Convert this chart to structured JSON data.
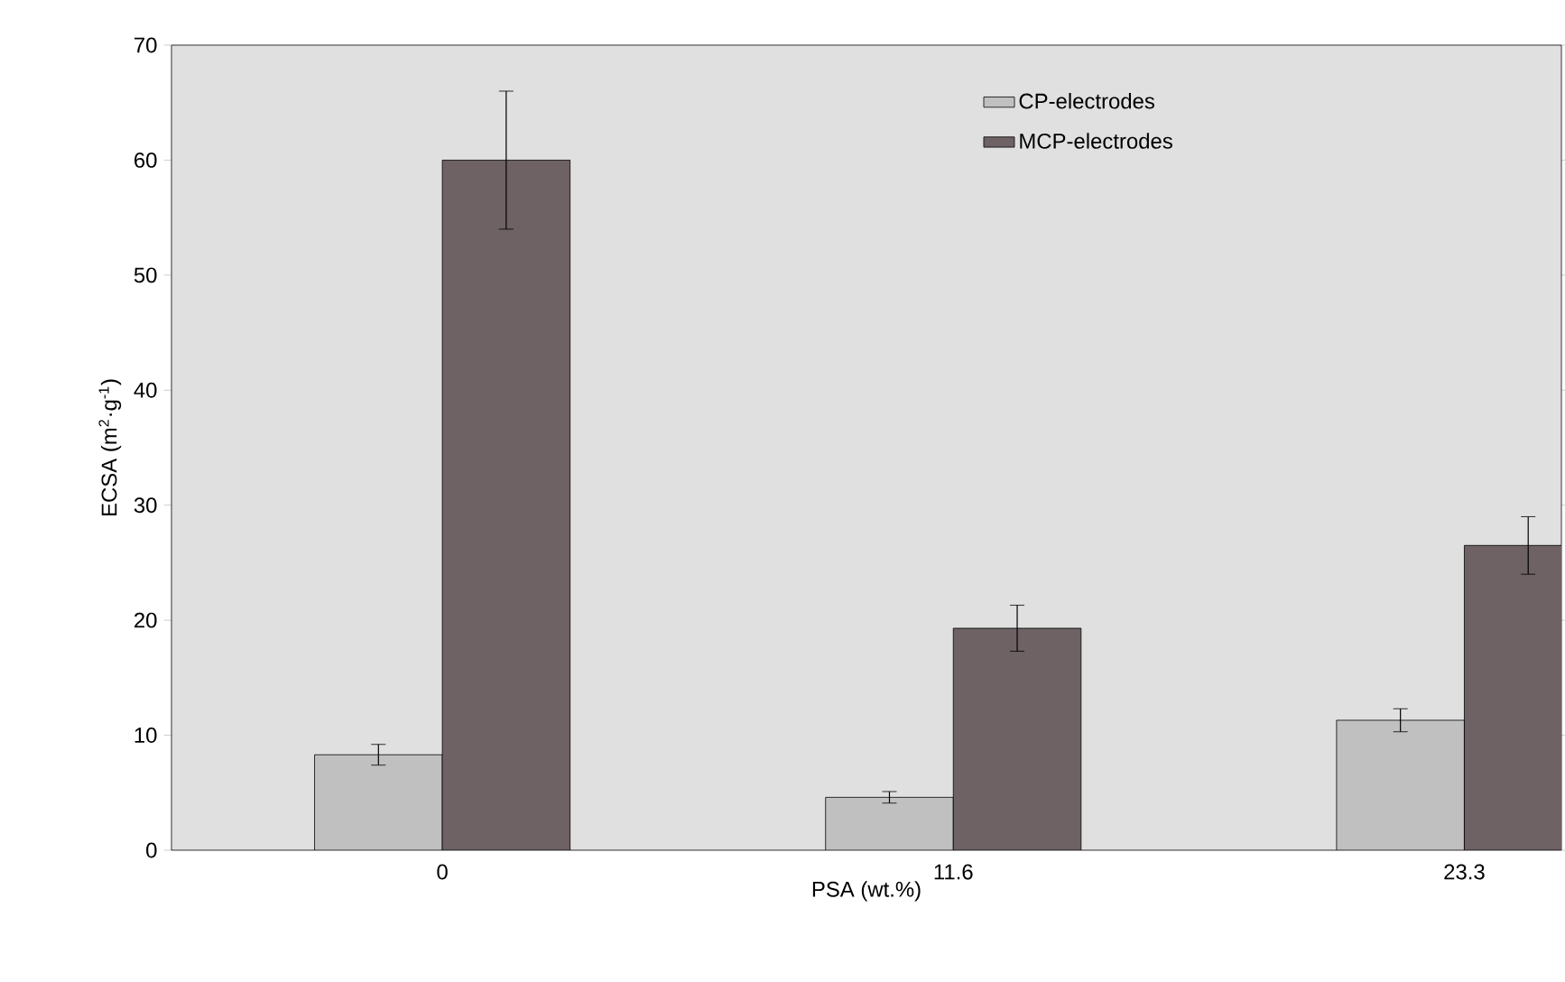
{
  "chart_data": {
    "type": "bar",
    "xlabel": "PSA (wt.%)",
    "ylabel": "ECSA (m$^{2}$·g$^{-1}$)",
    "categories": [
      "0",
      "11.6",
      "23.3"
    ],
    "series": [
      {
        "name": "CP-electrodes",
        "color": "#c0c0c0",
        "values": [
          8.3,
          4.6,
          11.3
        ],
        "errors": [
          0.9,
          0.5,
          1.0
        ]
      },
      {
        "name": "MCP-electrodes",
        "color": "#6e6264",
        "values": [
          60,
          19.3,
          26.5
        ],
        "errors": [
          6,
          2,
          2.5
        ]
      }
    ],
    "ylim": [
      0,
      70
    ],
    "yticks": [
      0,
      10,
      20,
      30,
      40,
      50,
      60,
      70
    ],
    "legend": "top right",
    "grid": false
  }
}
